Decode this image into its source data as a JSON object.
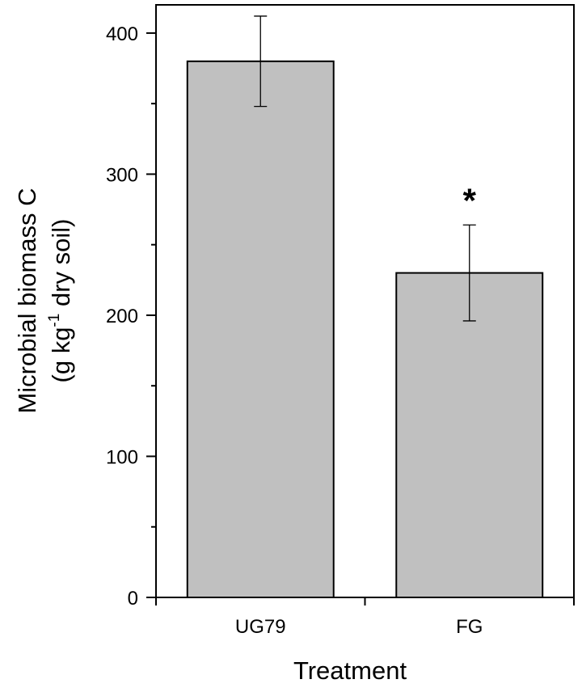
{
  "chart_data": {
    "type": "bar",
    "categories": [
      "UG79",
      "FG"
    ],
    "values": [
      380,
      230
    ],
    "error": [
      32,
      34
    ],
    "ylim": [
      0,
      420
    ],
    "yticks": [
      0,
      100,
      200,
      300,
      400
    ],
    "ytick_labels": [
      "0",
      "100",
      "200",
      "300",
      "400"
    ],
    "xlabel": "Treatment",
    "ylabel_line1": "Microbial biomass C",
    "ylabel_line2_pre": "(g kg",
    "ylabel_line2_sup": "-1",
    "ylabel_line2_post": " dry soil)",
    "annotations": [
      {
        "category": "FG",
        "text": "*"
      }
    ],
    "bar_color": "#c0c0c0",
    "grid": false,
    "legend": "none"
  }
}
